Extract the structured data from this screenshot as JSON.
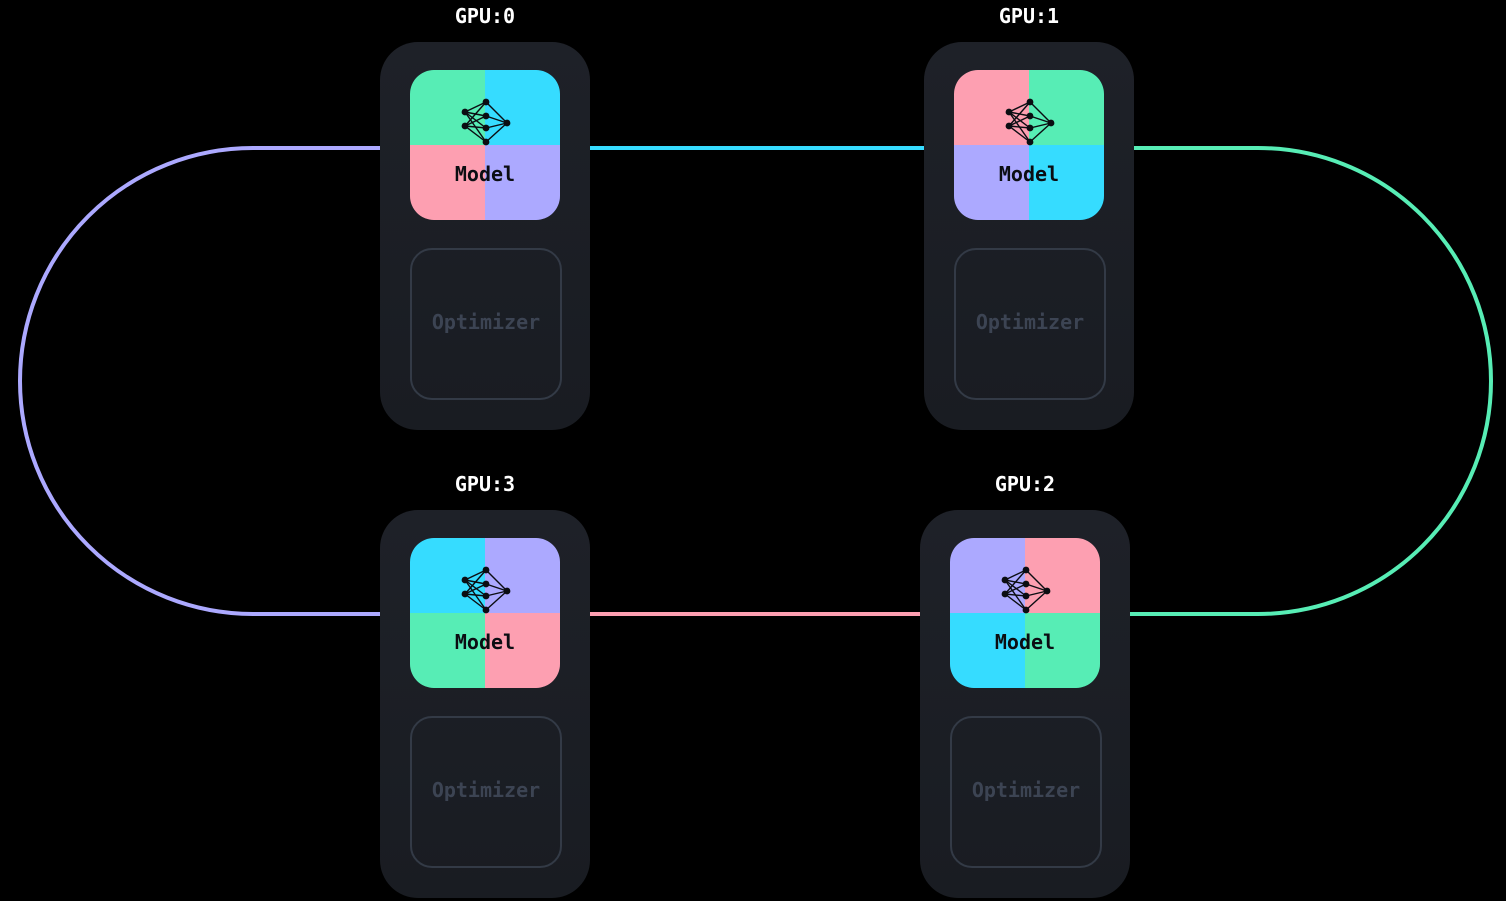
{
  "colors": {
    "green": "#57edb5",
    "cyan": "#36dcff",
    "pink": "#fd9fb1",
    "lavender": "#aca9ff",
    "background": "#000000",
    "card": "#1c1f25",
    "optimizer_border": "#333a46",
    "optimizer_text": "#3c4453"
  },
  "gpus": [
    {
      "label": "GPU:0",
      "model_label": "Model",
      "optimizer_label": "Optimizer",
      "quadrants": [
        "green",
        "cyan",
        "pink",
        "lavender"
      ]
    },
    {
      "label": "GPU:1",
      "model_label": "Model",
      "optimizer_label": "Optimizer",
      "quadrants": [
        "pink",
        "green",
        "lavender",
        "cyan"
      ]
    },
    {
      "label": "GPU:2",
      "model_label": "Model",
      "optimizer_label": "Optimizer",
      "quadrants": [
        "lavender",
        "pink",
        "cyan",
        "green"
      ]
    },
    {
      "label": "GPU:3",
      "model_label": "Model",
      "optimizer_label": "Optimizer",
      "quadrants": [
        "cyan",
        "lavender",
        "green",
        "pink"
      ]
    }
  ],
  "icons": {
    "model": "neural-network-icon"
  },
  "links": [
    {
      "from": "GPU:0",
      "to": "GPU:1",
      "color": "cyan"
    },
    {
      "from": "GPU:1",
      "to": "GPU:2",
      "color": "green"
    },
    {
      "from": "GPU:2",
      "to": "GPU:3",
      "color": "pink"
    },
    {
      "from": "GPU:3",
      "to": "GPU:0",
      "color": "lavender"
    }
  ]
}
